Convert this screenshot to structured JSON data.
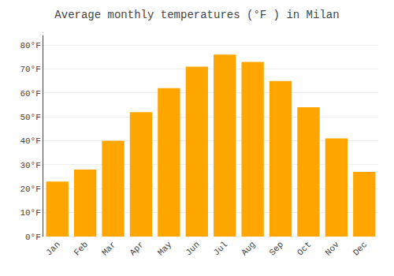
{
  "chart_data": {
    "type": "bar",
    "title": "Average monthly temperatures (°F ) in Milan",
    "categories": [
      "Jan",
      "Feb",
      "Mar",
      "Apr",
      "May",
      "Jun",
      "Jul",
      "Aug",
      "Sep",
      "Oct",
      "Nov",
      "Dec"
    ],
    "values": [
      23,
      28,
      40,
      52,
      62,
      71,
      76,
      73,
      65,
      54,
      41,
      27
    ],
    "color": "#FFA500",
    "ylim": [
      0,
      84
    ],
    "yticks": [
      {
        "value": 0,
        "label": "0°F"
      },
      {
        "value": 10,
        "label": "10°F"
      },
      {
        "value": 20,
        "label": "20°F"
      },
      {
        "value": 30,
        "label": "30°F"
      },
      {
        "value": 40,
        "label": "40°F"
      },
      {
        "value": 50,
        "label": "50°F"
      },
      {
        "value": 60,
        "label": "60°F"
      },
      {
        "value": 70,
        "label": "70°F"
      },
      {
        "value": 80,
        "label": "80°F"
      }
    ],
    "grid": true
  }
}
